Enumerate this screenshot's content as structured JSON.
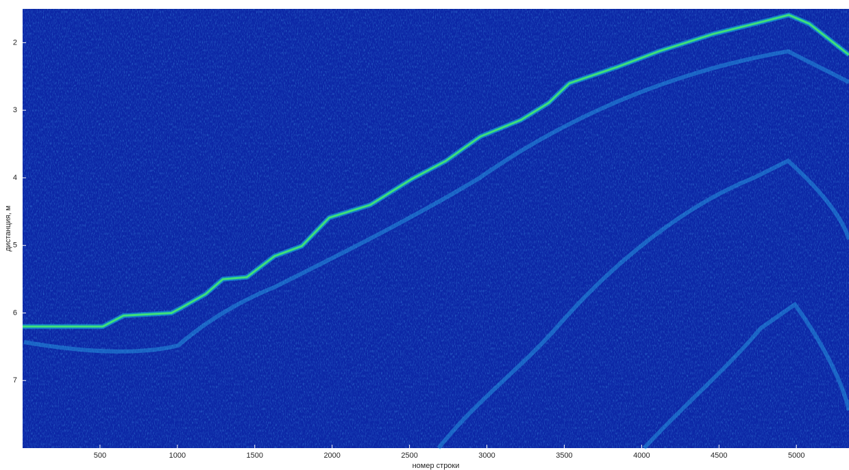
{
  "chart_data": {
    "type": "line",
    "x_label": "номер строки",
    "y_label": "дистанция, м",
    "xlim": [
      0,
      5340
    ],
    "ylim": [
      1.5,
      8.0
    ],
    "y_reversed": true,
    "xticks": [
      500,
      1000,
      1500,
      2000,
      2500,
      3000,
      3500,
      4000,
      4500,
      5000
    ],
    "yticks": [
      2,
      3,
      4,
      5,
      6,
      7
    ],
    "background": "#0c27a6",
    "color": "#3ee07a",
    "x": [
      0,
      518,
      652,
      962,
      1028,
      1183,
      1294,
      1449,
      1627,
      1804,
      1981,
      2247,
      2513,
      2735,
      2957,
      3223,
      3400,
      3533,
      3843,
      4109,
      4464,
      4730,
      4951,
      5084,
      5340
    ],
    "values": [
      6.2,
      6.2,
      6.04,
      6.0,
      5.92,
      5.72,
      5.5,
      5.47,
      5.16,
      5.01,
      4.59,
      4.4,
      4.02,
      3.75,
      3.39,
      3.14,
      2.89,
      2.6,
      2.36,
      2.13,
      1.87,
      1.72,
      1.59,
      1.72,
      2.18
    ]
  }
}
